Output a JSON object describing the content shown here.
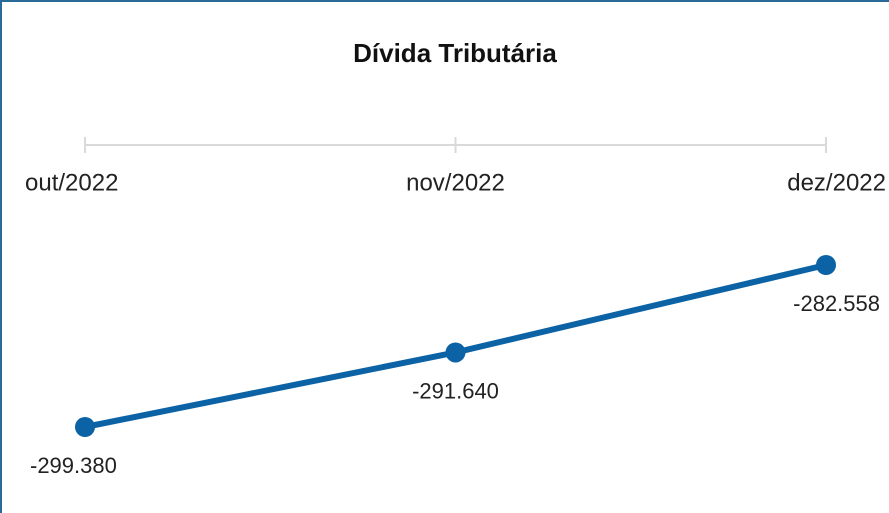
{
  "chart_data": {
    "type": "line",
    "title": "Dívida Tributária",
    "categories": [
      "out/2022",
      "nov/2022",
      "dez/2022"
    ],
    "series": [
      {
        "name": "Dívida Tributária",
        "color": "#0b62a4",
        "values": [
          -299380,
          -291640,
          -282558
        ],
        "value_labels": [
          "-299.380",
          "-291.640",
          "-282.558"
        ]
      }
    ]
  }
}
